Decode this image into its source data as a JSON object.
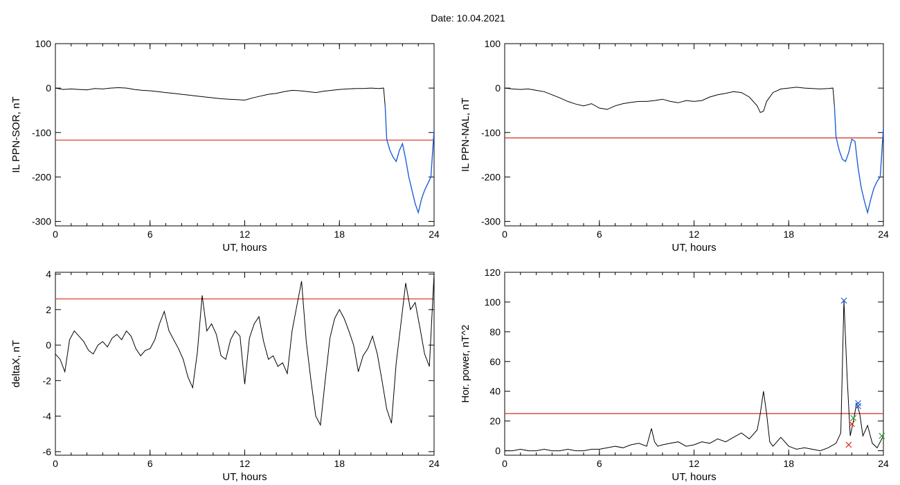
{
  "page": {
    "title": "Date:  10.04.2021",
    "date": "10.04.2021",
    "colors": {
      "axis": "#000000",
      "trace": "#000000",
      "threshold": "#d62b1f",
      "highlight": "#1f5fd6",
      "marker_blue": "#1f5fd6",
      "marker_red": "#d62b1f",
      "marker_green": "#2e9e2e"
    }
  },
  "chart_data": [
    {
      "id": "sor",
      "type": "line",
      "xlabel": "UT, hours",
      "ylabel": "IL PPN-SOR, nT",
      "xlim": [
        0,
        24
      ],
      "ylim": [
        -310,
        100
      ],
      "xticks": [
        0,
        6,
        12,
        18,
        24
      ],
      "yticks": [
        100,
        0,
        -100,
        -200,
        -300
      ],
      "threshold": -117,
      "highlight_from_x": 21.0,
      "grid": false,
      "x": [
        0,
        0.5,
        1,
        1.5,
        2,
        2.5,
        3,
        3.5,
        4,
        4.5,
        5,
        5.5,
        6,
        6.5,
        7,
        7.5,
        8,
        8.5,
        9,
        9.5,
        10,
        10.5,
        11,
        11.5,
        12,
        12.5,
        13,
        13.5,
        14,
        14.5,
        15,
        15.5,
        16,
        16.5,
        17,
        17.5,
        18,
        18.5,
        19,
        19.5,
        20,
        20.5,
        20.8,
        20.9,
        21.0,
        21.2,
        21.4,
        21.6,
        21.8,
        22.0,
        22.2,
        22.4,
        22.6,
        22.8,
        23.0,
        23.2,
        23.4,
        23.6,
        23.8,
        24.0
      ],
      "values": [
        0,
        -3,
        -2,
        -3,
        -4,
        -1,
        -2,
        0,
        1,
        0,
        -3,
        -5,
        -6,
        -8,
        -10,
        -12,
        -14,
        -16,
        -18,
        -20,
        -22,
        -24,
        -25,
        -26,
        -27,
        -22,
        -18,
        -14,
        -12,
        -8,
        -5,
        -6,
        -8,
        -10,
        -7,
        -5,
        -3,
        -2,
        -1,
        -1,
        0,
        -1,
        0,
        -40,
        -115,
        -140,
        -155,
        -165,
        -140,
        -125,
        -160,
        -200,
        -230,
        -260,
        -280,
        -250,
        -230,
        -215,
        -200,
        -95
      ]
    },
    {
      "id": "nal",
      "type": "line",
      "xlabel": "UT, hours",
      "ylabel": "IL PPN-NAL, nT",
      "xlim": [
        0,
        24
      ],
      "ylim": [
        -310,
        100
      ],
      "xticks": [
        0,
        6,
        12,
        18,
        24
      ],
      "yticks": [
        100,
        0,
        -100,
        -200,
        -300
      ],
      "threshold": -112,
      "highlight_from_x": 21.0,
      "grid": false,
      "x": [
        0,
        0.5,
        1,
        1.5,
        2,
        2.5,
        3,
        3.5,
        4,
        4.5,
        5,
        5.5,
        6,
        6.5,
        7,
        7.5,
        8,
        8.5,
        9,
        9.5,
        10,
        10.5,
        11,
        11.5,
        12,
        12.5,
        13,
        13.5,
        14,
        14.5,
        15,
        15.5,
        16,
        16.2,
        16.4,
        16.6,
        17,
        17.5,
        18,
        18.5,
        19,
        19.5,
        20,
        20.5,
        20.8,
        20.9,
        21.0,
        21.2,
        21.4,
        21.6,
        21.8,
        22.0,
        22.2,
        22.4,
        22.6,
        22.8,
        23.0,
        23.2,
        23.4,
        23.6,
        23.8,
        24.0
      ],
      "values": [
        0,
        -2,
        -3,
        -2,
        -5,
        -8,
        -15,
        -22,
        -30,
        -36,
        -40,
        -35,
        -45,
        -48,
        -40,
        -35,
        -32,
        -30,
        -30,
        -28,
        -25,
        -30,
        -33,
        -28,
        -30,
        -28,
        -20,
        -15,
        -12,
        -8,
        -10,
        -20,
        -40,
        -55,
        -52,
        -30,
        -10,
        -2,
        0,
        2,
        0,
        -1,
        -2,
        -1,
        0,
        -40,
        -110,
        -140,
        -160,
        -165,
        -145,
        -115,
        -120,
        -180,
        -225,
        -255,
        -280,
        -250,
        -225,
        -210,
        -200,
        -90
      ]
    },
    {
      "id": "deltax",
      "type": "line",
      "xlabel": "UT, hours",
      "ylabel": "deltaX, nT",
      "xlim": [
        0,
        24
      ],
      "ylim": [
        -6.2,
        4.1
      ],
      "xticks": [
        0,
        6,
        12,
        18,
        24
      ],
      "yticks": [
        4,
        2,
        0,
        -2,
        -4,
        -6
      ],
      "threshold": 2.6,
      "grid": false,
      "x": [
        0,
        0.3,
        0.6,
        0.9,
        1.2,
        1.5,
        1.8,
        2.1,
        2.4,
        2.7,
        3.0,
        3.3,
        3.6,
        3.9,
        4.2,
        4.5,
        4.8,
        5.1,
        5.4,
        5.7,
        6.0,
        6.3,
        6.6,
        6.9,
        7.2,
        7.5,
        7.8,
        8.1,
        8.4,
        8.7,
        9.0,
        9.3,
        9.6,
        9.9,
        10.2,
        10.5,
        10.8,
        11.1,
        11.4,
        11.7,
        12.0,
        12.3,
        12.6,
        12.9,
        13.2,
        13.5,
        13.8,
        14.1,
        14.4,
        14.7,
        15.0,
        15.3,
        15.6,
        15.9,
        16.2,
        16.5,
        16.8,
        17.1,
        17.4,
        17.7,
        18.0,
        18.3,
        18.6,
        18.9,
        19.2,
        19.5,
        19.8,
        20.1,
        20.4,
        20.7,
        21.0,
        21.3,
        21.6,
        21.9,
        22.2,
        22.5,
        22.8,
        23.1,
        23.4,
        23.7,
        24.0
      ],
      "values": [
        -0.5,
        -0.8,
        -1.5,
        0.3,
        0.8,
        0.5,
        0.2,
        -0.3,
        -0.5,
        0.0,
        0.2,
        -0.1,
        0.4,
        0.6,
        0.3,
        0.8,
        0.5,
        -0.2,
        -0.6,
        -0.3,
        -0.2,
        0.3,
        1.2,
        1.9,
        0.8,
        0.3,
        -0.2,
        -0.8,
        -1.8,
        -2.4,
        -0.4,
        2.8,
        0.8,
        1.2,
        0.6,
        -0.6,
        -0.8,
        0.3,
        0.8,
        0.5,
        -2.2,
        0.4,
        1.2,
        1.6,
        0.2,
        -0.8,
        -0.6,
        -1.2,
        -1.0,
        -1.6,
        0.8,
        2.2,
        3.6,
        0.2,
        -2.0,
        -4.0,
        -4.5,
        -2.0,
        0.4,
        1.5,
        2.0,
        1.5,
        0.8,
        0.0,
        -1.5,
        -0.6,
        -0.2,
        0.5,
        -0.5,
        -2.0,
        -3.6,
        -4.4,
        -1.0,
        1.2,
        3.5,
        2.0,
        2.4,
        1.0,
        -0.5,
        -1.2,
        4.0
      ]
    },
    {
      "id": "power",
      "type": "line",
      "xlabel": "UT, hours",
      "ylabel": "Hor. power, nT^2",
      "xlim": [
        0,
        24
      ],
      "ylim": [
        -3,
        120
      ],
      "xticks": [
        0,
        6,
        12,
        18,
        24
      ],
      "yticks": [
        120,
        100,
        80,
        60,
        40,
        20,
        0
      ],
      "threshold": 25,
      "grid": false,
      "x": [
        0,
        0.5,
        1,
        1.5,
        2,
        2.5,
        3,
        3.5,
        4,
        4.5,
        5,
        5.5,
        6,
        6.5,
        7,
        7.5,
        8,
        8.5,
        9,
        9.3,
        9.5,
        9.7,
        10,
        10.5,
        11,
        11.5,
        12,
        12.5,
        13,
        13.5,
        14,
        14.5,
        15,
        15.5,
        16,
        16.2,
        16.4,
        16.6,
        16.8,
        17,
        17.5,
        18,
        18.5,
        19,
        19.5,
        20,
        20.5,
        21.0,
        21.3,
        21.5,
        21.7,
        21.9,
        22.1,
        22.3,
        22.5,
        22.7,
        23.0,
        23.3,
        23.6,
        24.0
      ],
      "values": [
        0,
        0,
        1,
        0,
        0,
        1,
        0,
        0,
        1,
        0,
        0,
        1,
        1,
        2,
        3,
        2,
        4,
        5,
        3,
        15,
        6,
        3,
        4,
        5,
        6,
        3,
        4,
        6,
        5,
        8,
        6,
        9,
        12,
        8,
        14,
        25,
        40,
        25,
        6,
        3,
        9,
        3,
        1,
        2,
        1,
        0,
        2,
        5,
        12,
        101,
        50,
        10,
        20,
        32,
        25,
        10,
        17,
        5,
        2,
        10
      ],
      "markers": [
        {
          "x": 21.5,
          "y": 101,
          "color": "blue"
        },
        {
          "x": 22.4,
          "y": 32,
          "color": "blue"
        },
        {
          "x": 22.4,
          "y": 30,
          "color": "blue"
        },
        {
          "x": 22.1,
          "y": 22,
          "color": "green"
        },
        {
          "x": 22.0,
          "y": 18,
          "color": "red"
        },
        {
          "x": 21.8,
          "y": 4,
          "color": "red"
        },
        {
          "x": 23.9,
          "y": 10,
          "color": "green"
        }
      ]
    }
  ]
}
